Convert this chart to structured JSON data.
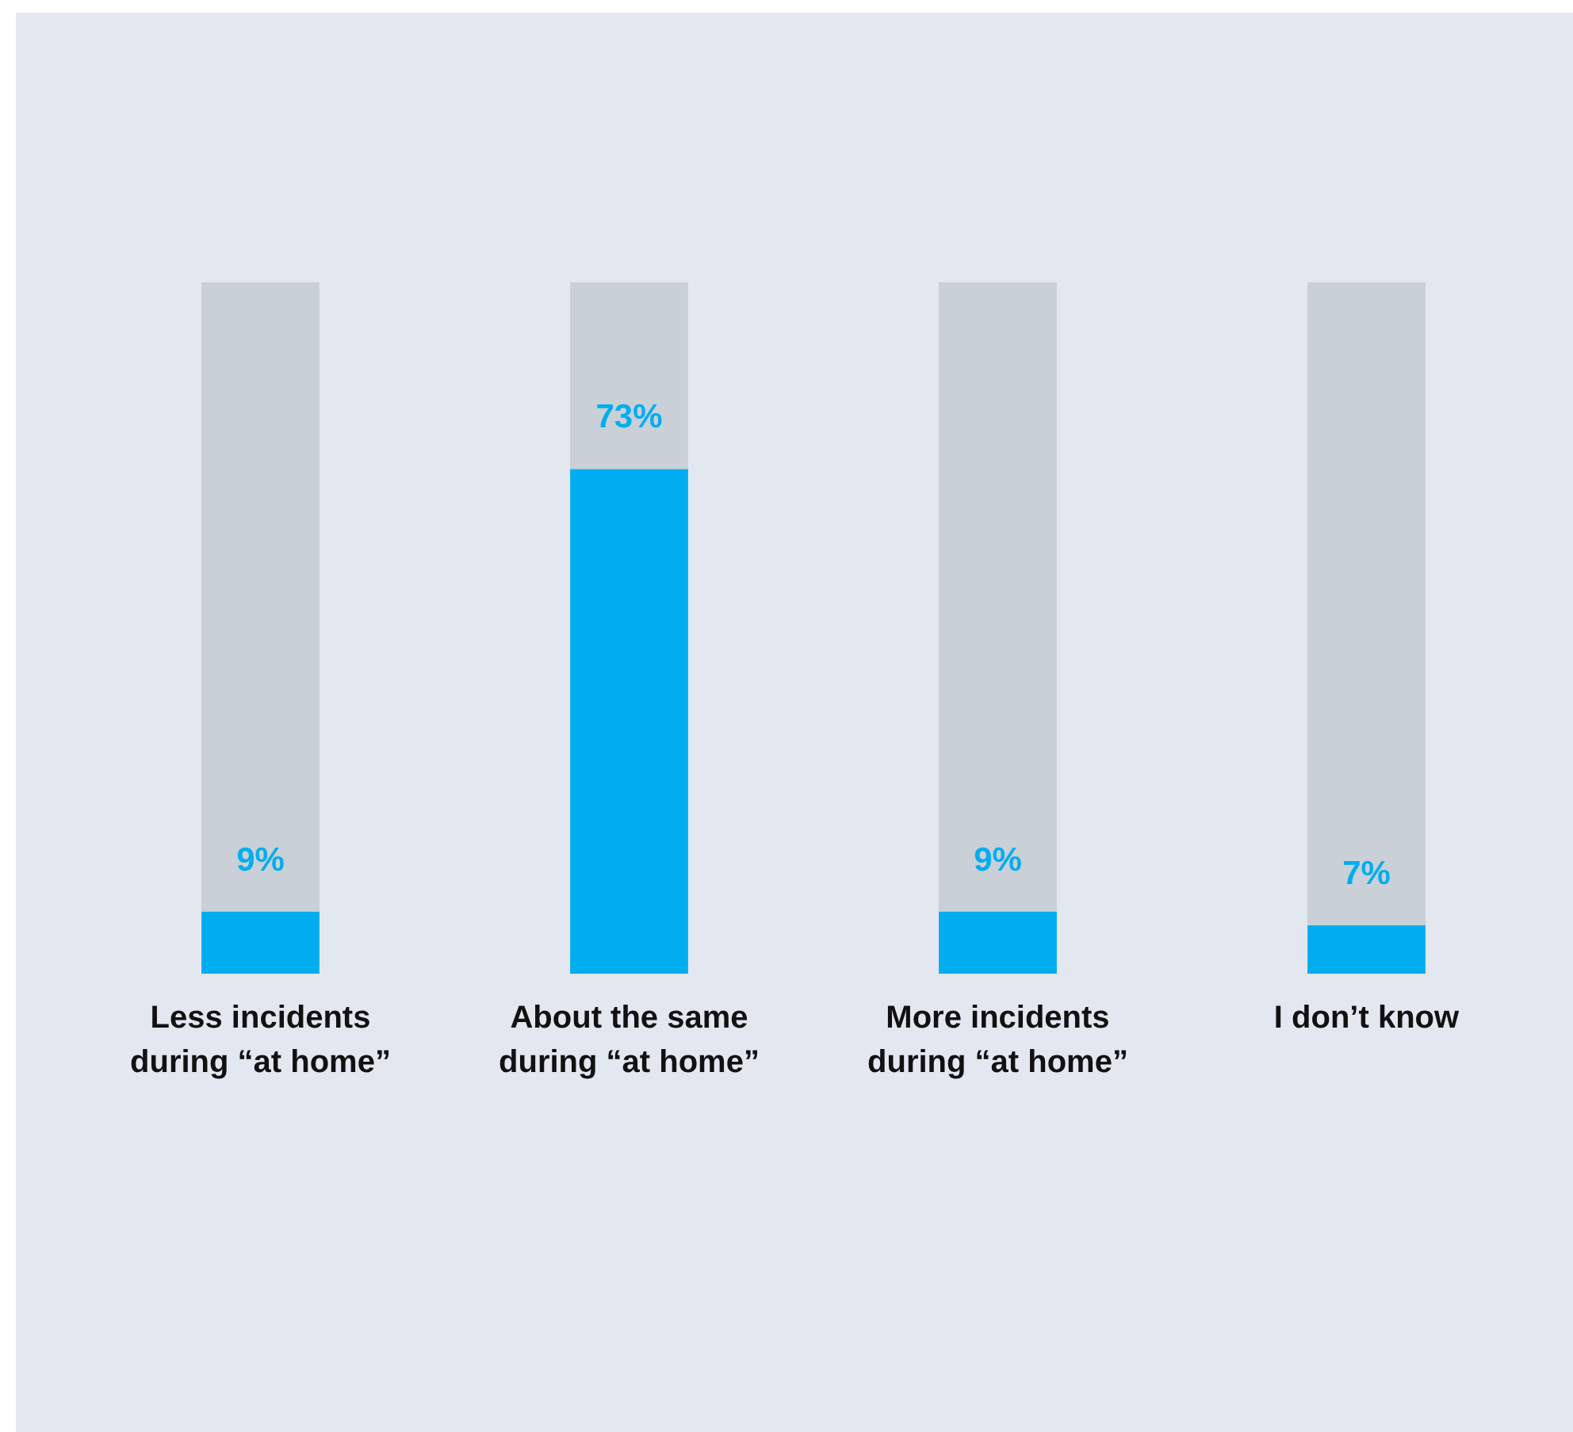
{
  "chart_data": {
    "type": "bar",
    "stacked": true,
    "categories": [
      "Less incidents during “at home”",
      "About the same during “at home”",
      "More incidents during “at home”",
      "I don’t know"
    ],
    "series": [
      {
        "color": "#00aeef",
        "values": [
          9,
          73,
          9,
          7
        ],
        "value_labels": [
          "9%",
          "73%",
          "9%",
          "7%"
        ]
      },
      {
        "color": "#c9d0d8",
        "values": [
          91,
          27,
          91,
          93
        ]
      }
    ],
    "ylim": [
      0,
      100
    ],
    "tick_labels": "x"
  }
}
